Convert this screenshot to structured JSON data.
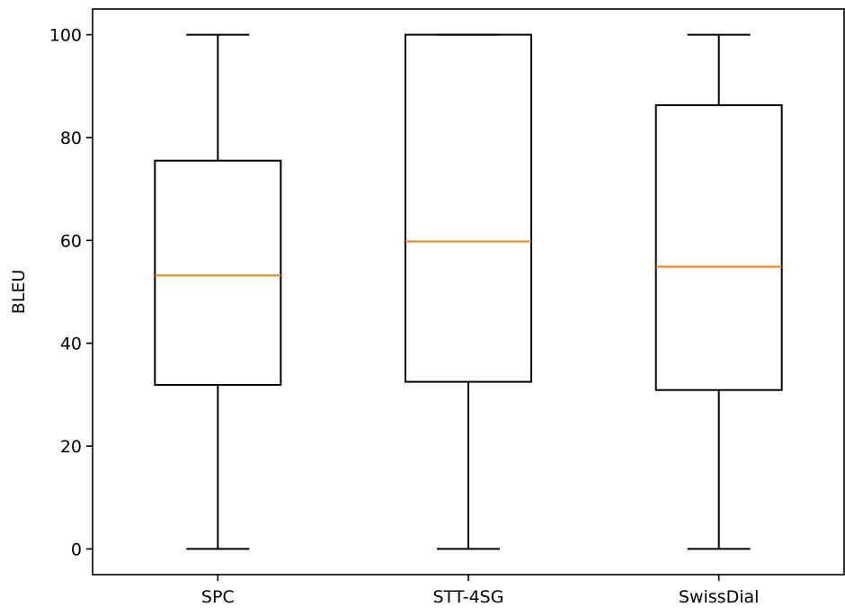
{
  "chart_data": {
    "type": "box",
    "title": "",
    "xlabel": "",
    "ylabel": "BLEU",
    "ylim": [
      -5,
      105
    ],
    "yticks": [
      0,
      20,
      40,
      60,
      80,
      100
    ],
    "grid": false,
    "categories": [
      "SPC",
      "STT-4SG",
      "SwissDial"
    ],
    "boxes": [
      {
        "label": "SPC",
        "whisker_low": 0,
        "q1": 31.9,
        "median": 53.2,
        "q3": 75.5,
        "whisker_high": 100
      },
      {
        "label": "STT-4SG",
        "whisker_low": 0,
        "q1": 32.5,
        "median": 59.8,
        "q3": 100,
        "whisker_high": 100
      },
      {
        "label": "SwissDial",
        "whisker_low": 0,
        "q1": 30.9,
        "median": 54.9,
        "q3": 86.3,
        "whisker_high": 100
      }
    ],
    "colors": {
      "box": "#000000",
      "median": "#ff7f0e",
      "axis": "#000000"
    }
  }
}
